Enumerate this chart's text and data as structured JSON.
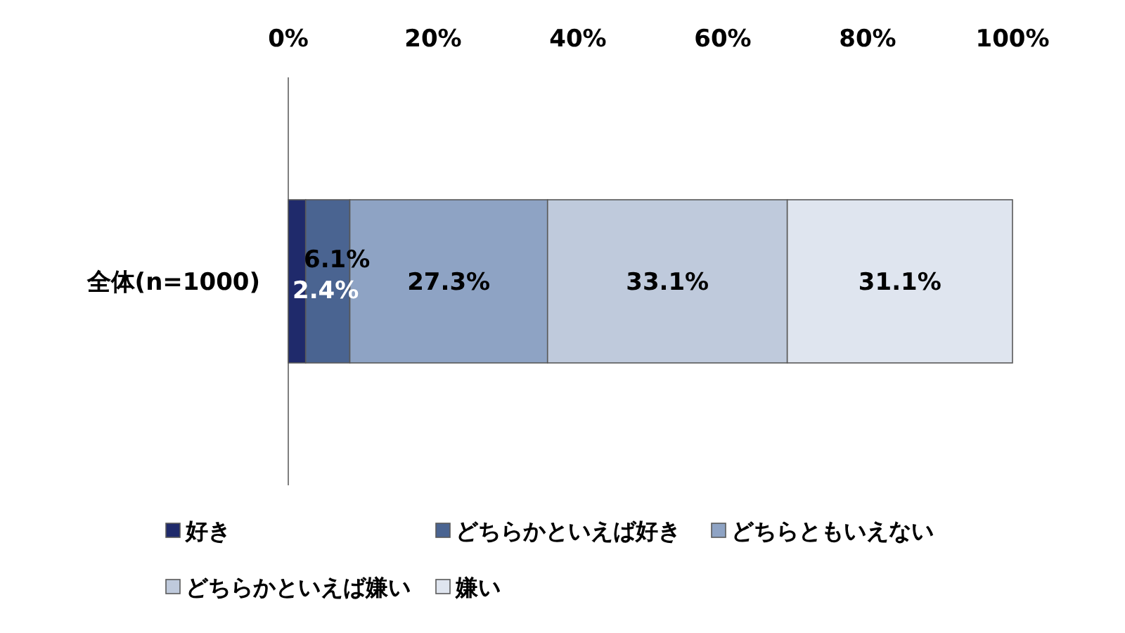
{
  "chart_data": {
    "type": "bar",
    "orientation": "horizontal",
    "stacked": true,
    "categories": [
      "全体(n=1000)"
    ],
    "series": [
      {
        "name": "好き",
        "color": "#1f2a6b",
        "values": [
          2.4
        ],
        "value_labels": [
          "2.4%"
        ]
      },
      {
        "name": "どちらかといえば好き",
        "color": "#4a6491",
        "values": [
          6.1
        ],
        "value_labels": [
          "6.1%"
        ]
      },
      {
        "name": "どちらともいえない",
        "color": "#8ea3c4",
        "values": [
          27.3
        ],
        "value_labels": [
          "27.3%"
        ]
      },
      {
        "name": "どちらかといえば嫌い",
        "color": "#bfcadc",
        "values": [
          33.1
        ],
        "value_labels": [
          "33.1%"
        ]
      },
      {
        "name": "嫌い",
        "color": "#dfe5ef",
        "values": [
          31.1
        ],
        "value_labels": [
          "31.1%"
        ]
      }
    ],
    "xlim": [
      0,
      100
    ],
    "xticks": [
      {
        "value": 0,
        "label": "0%"
      },
      {
        "value": 20,
        "label": "20%"
      },
      {
        "value": 40,
        "label": "40%"
      },
      {
        "value": 60,
        "label": "60%"
      },
      {
        "value": 80,
        "label": "80%"
      },
      {
        "value": 100,
        "label": "100%"
      }
    ],
    "legend": "bottom"
  }
}
